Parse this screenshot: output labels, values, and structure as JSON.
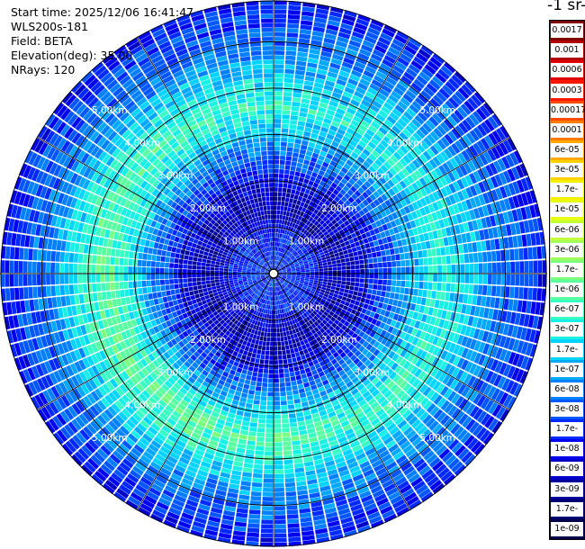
{
  "info": {
    "start_time": "Start time: 2025/12/06 16:41:47",
    "instrument": "WLS200s-181",
    "field": "Field: BETA",
    "elevation": "Elevation(deg): 35.00",
    "nrays": "NRays: 120"
  },
  "colorbar": {
    "title": "-1 sr-",
    "ticks": [
      "0.0017",
      "0.001",
      "0.0006",
      "0.0003",
      "0.00017",
      "0.0001",
      "6e-05",
      "3e-05",
      "1.7e-05",
      "1e-05",
      "6e-06",
      "3e-06",
      "1.7e-06",
      "1e-06",
      "6e-07",
      "3e-07",
      "1.7e-07",
      "1e-07",
      "6e-08",
      "3e-08",
      "1.7e-08",
      "1e-08",
      "6e-09",
      "3e-09",
      "1.7e-09",
      "1e-09"
    ],
    "colors": [
      "#7f0000",
      "#b00000",
      "#e00000",
      "#ff1800",
      "#ff4a00",
      "#ff7a00",
      "#ffa800",
      "#ffd200",
      "#f5f000",
      "#e6ff10",
      "#c0ff38",
      "#a0ff5a",
      "#7cff7c",
      "#5affa0",
      "#38ffc4",
      "#18f0e6",
      "#00d4ff",
      "#00a8ff",
      "#0080ff",
      "#0056ff",
      "#0028ff",
      "#0000f0",
      "#0000c8",
      "#00009a",
      "#000070",
      "#000048"
    ]
  },
  "chart_data": {
    "type": "heatmap",
    "title": "",
    "field": "BETA",
    "projection": "polar (PPI)",
    "nrays": 120,
    "elevation_deg": 35.0,
    "range_ring_labels": [
      "1.00km",
      "2.00km",
      "3.00km",
      "4.00km",
      "5.00km"
    ],
    "range_rings_km": [
      1,
      2,
      3,
      4,
      5
    ],
    "max_range_km": 5.9,
    "colorscale": "log",
    "value_range": [
      1e-09,
      0.0017
    ],
    "radial_profile_km_log10beta": [
      [
        0.0,
        -7.6
      ],
      [
        0.8,
        -7.7
      ],
      [
        1.3,
        -8.3
      ],
      [
        1.8,
        -8.1
      ],
      [
        2.4,
        -7.5
      ],
      [
        3.0,
        -6.8
      ],
      [
        3.6,
        -6.2
      ],
      [
        4.2,
        -6.6
      ],
      [
        4.8,
        -7.2
      ],
      [
        5.4,
        -7.5
      ],
      [
        5.9,
        -7.9
      ]
    ]
  }
}
